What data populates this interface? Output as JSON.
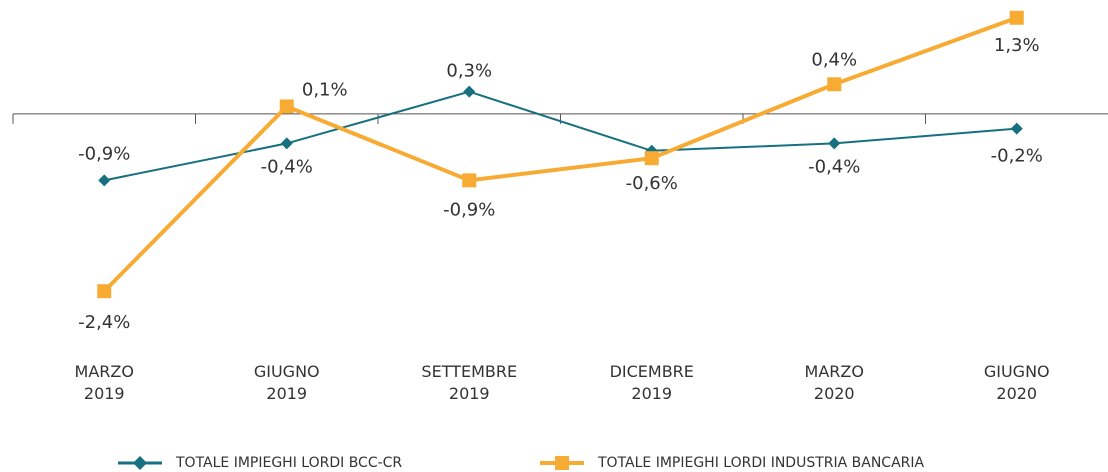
{
  "chart_data": {
    "type": "line",
    "categories": [
      "MARZO 2019",
      "GIUGNO 2019",
      "SETTEMBRE 2019",
      "DICEMBRE 2019",
      "MARZO 2020",
      "GIUGNO 2020"
    ],
    "series": [
      {
        "name": "TOTALE IMPIEGHI LORDI BCC-CR",
        "color": "#17707f",
        "marker": "diamond",
        "values": [
          -0.9,
          -0.4,
          0.3,
          -0.5,
          -0.4,
          -0.2
        ],
        "value_labels": [
          "-0,9%",
          "-0,4%",
          "0,3%",
          null,
          "-0,4%",
          "-0,2%"
        ]
      },
      {
        "name": "TOTALE IMPIEGHI LORDI INDUSTRIA BANCARIA",
        "color": "#f7ab33",
        "marker": "square",
        "values": [
          -2.4,
          0.1,
          -0.9,
          -0.6,
          0.4,
          1.3
        ],
        "value_labels": [
          "-2,4%",
          "0,1%",
          "-0,9%",
          "-0,6%",
          "0,4%",
          "1,3%"
        ]
      }
    ],
    "ylim": [
      -2.6,
      1.5
    ],
    "legend": "bottom"
  }
}
